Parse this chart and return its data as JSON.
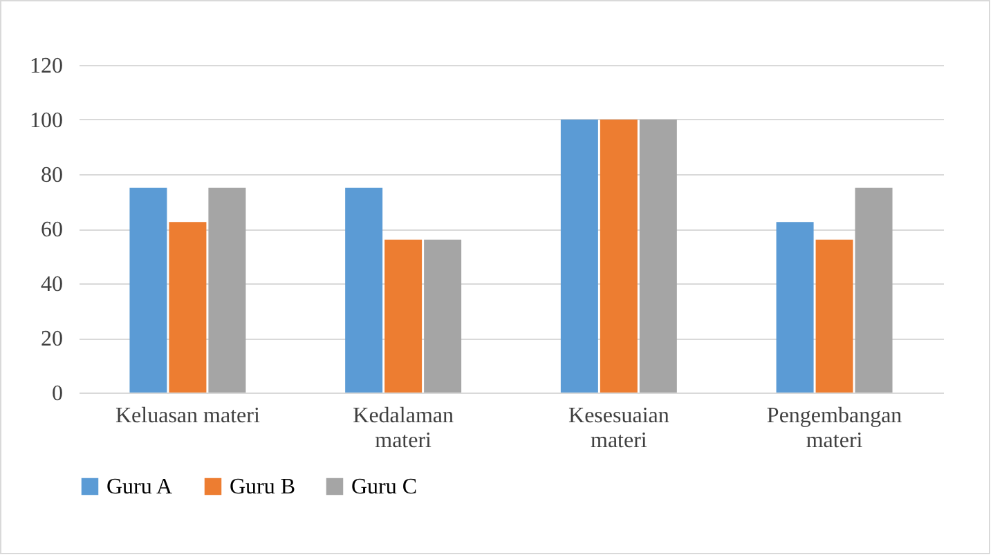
{
  "chart_data": {
    "type": "bar",
    "categories": [
      "Keluasan materi",
      "Kedalaman materi",
      "Kesesuaian materi",
      "Pengembangan materi"
    ],
    "series": [
      {
        "name": "Guru A",
        "color": "#5b9bd5",
        "values": [
          75,
          75,
          100,
          62.5
        ]
      },
      {
        "name": "Guru B",
        "color": "#ed7d31",
        "values": [
          62.5,
          56,
          100,
          56
        ]
      },
      {
        "name": "Guru C",
        "color": "#a5a5a5",
        "values": [
          75,
          56,
          100,
          75
        ]
      }
    ],
    "ylim": [
      0,
      120
    ],
    "yticks": [
      0,
      20,
      40,
      60,
      80,
      100,
      120
    ],
    "grid": "y",
    "legend": "bottom"
  }
}
